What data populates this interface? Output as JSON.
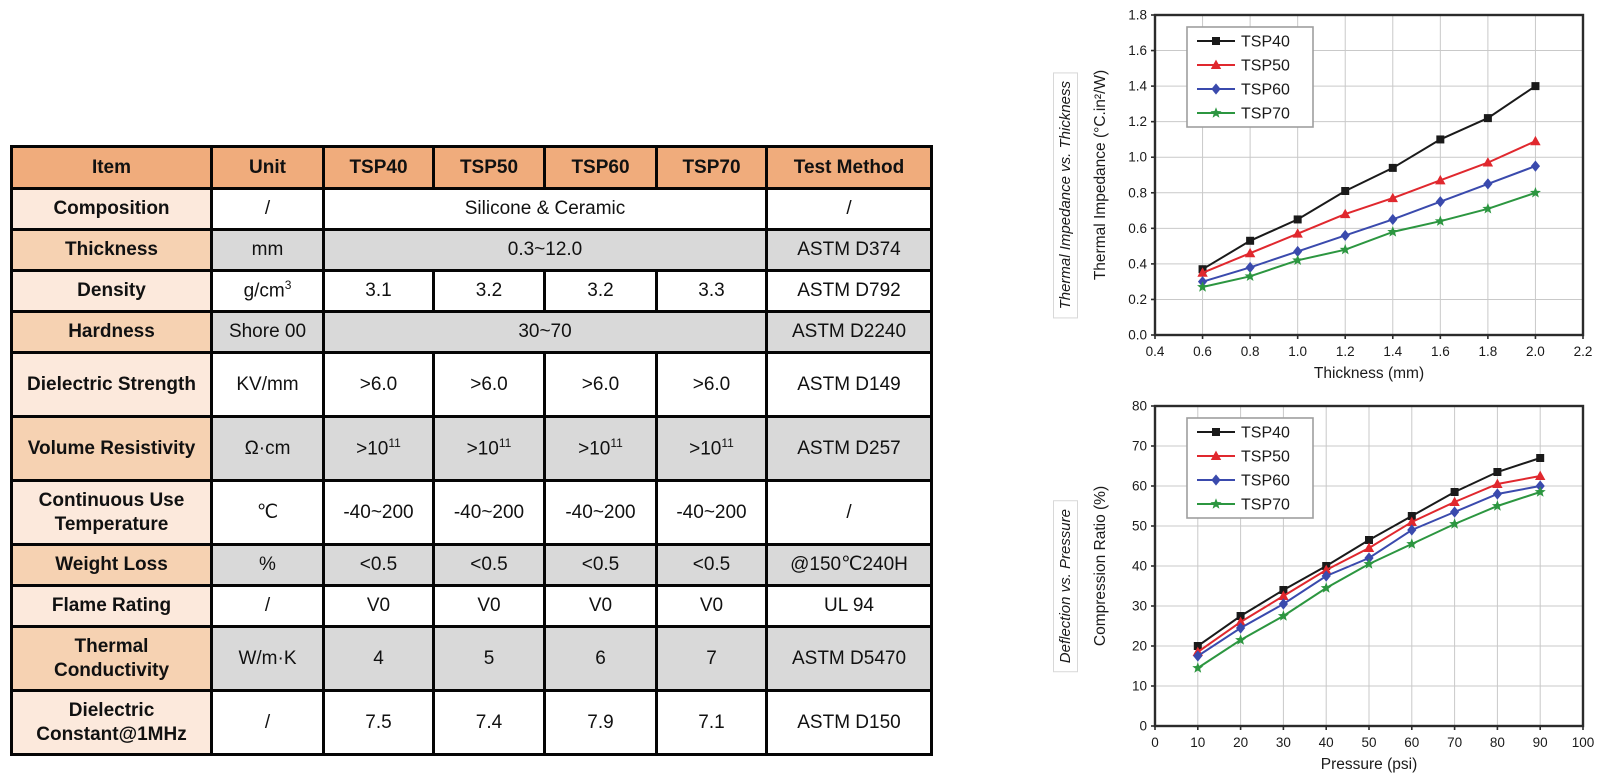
{
  "table": {
    "columns": [
      "Item",
      "Unit",
      "TSP40",
      "TSP50",
      "TSP60",
      "TSP70",
      "Test Method"
    ],
    "rows": [
      {
        "item": "Composition",
        "unit": "/",
        "merged": true,
        "values": [
          "Silicone & Ceramic"
        ],
        "test": "/",
        "shade": "white",
        "height": "short"
      },
      {
        "item": "Thickness",
        "unit": "mm",
        "merged": true,
        "values": [
          "0.3~12.0"
        ],
        "test": "ASTM D374",
        "shade": "gray",
        "height": "short"
      },
      {
        "item": "Density",
        "unit": "g/cm^3",
        "merged": false,
        "values": [
          "3.1",
          "3.2",
          "3.2",
          "3.3"
        ],
        "test": "ASTM D792",
        "shade": "white",
        "height": "short"
      },
      {
        "item": "Hardness",
        "unit": "Shore 00",
        "merged": true,
        "values": [
          "30~70"
        ],
        "test": "ASTM D2240",
        "shade": "gray",
        "height": "short"
      },
      {
        "item": "Dielectric Strength",
        "unit": "KV/mm",
        "merged": false,
        "values": [
          ">6.0",
          ">6.0",
          ">6.0",
          ">6.0"
        ],
        "test": "ASTM D149",
        "shade": "white",
        "height": "tall"
      },
      {
        "item": "Volume Resistivity",
        "unit": "Ω·cm",
        "merged": false,
        "values": [
          ">10^11",
          ">10^11",
          ">10^11",
          ">10^11"
        ],
        "test": "ASTM D257",
        "shade": "gray",
        "height": "tall"
      },
      {
        "item": "Continuous Use Temperature",
        "unit": "℃",
        "merged": false,
        "values": [
          "-40~200",
          "-40~200",
          "-40~200",
          "-40~200"
        ],
        "test": "/",
        "shade": "white",
        "height": "tall"
      },
      {
        "item": "Weight Loss",
        "unit": "%",
        "merged": false,
        "values": [
          "<0.5",
          "<0.5",
          "<0.5",
          "<0.5"
        ],
        "test": "@150℃240H",
        "shade": "gray",
        "height": "short"
      },
      {
        "item": "Flame Rating",
        "unit": "/",
        "merged": false,
        "values": [
          "V0",
          "V0",
          "V0",
          "V0"
        ],
        "test": "UL 94",
        "shade": "white",
        "height": "short"
      },
      {
        "item": "Thermal Conductivity",
        "unit": "W/m·K",
        "merged": false,
        "values": [
          "4",
          "5",
          "6",
          "7"
        ],
        "test": "ASTM D5470",
        "shade": "gray",
        "height": "tall"
      },
      {
        "item": "Dielectric Constant@1MHz",
        "unit": "/",
        "merged": false,
        "values": [
          "7.5",
          "7.4",
          "7.9",
          "7.1"
        ],
        "test": "ASTM D150",
        "shade": "white",
        "height": "tall"
      }
    ]
  },
  "chart_data": [
    {
      "type": "line",
      "caption": "Thermal Impedance vs. Thickness",
      "xlabel": "Thickness (mm)",
      "ylabel": "Thermal Impedance (°C.in²/W)",
      "xlim": [
        0.4,
        2.2
      ],
      "ylim": [
        0.0,
        1.8
      ],
      "xtick_step": 0.2,
      "ytick_step": 0.2,
      "xtick_decimals": 1,
      "ytick_decimals": 1,
      "grid": true,
      "legend_position": "top-left",
      "x": [
        0.6,
        0.8,
        1.0,
        1.2,
        1.4,
        1.6,
        1.8,
        2.0
      ],
      "series": [
        {
          "name": "TSP40",
          "color": "#1a1a1a",
          "marker": "square",
          "values": [
            0.37,
            0.53,
            0.65,
            0.81,
            0.94,
            1.1,
            1.22,
            1.4
          ]
        },
        {
          "name": "TSP50",
          "color": "#e0282e",
          "marker": "triangle",
          "values": [
            0.35,
            0.46,
            0.57,
            0.68,
            0.77,
            0.87,
            0.97,
            1.09
          ]
        },
        {
          "name": "TSP60",
          "color": "#3a4aad",
          "marker": "diamond",
          "values": [
            0.3,
            0.38,
            0.47,
            0.56,
            0.65,
            0.75,
            0.85,
            0.95
          ]
        },
        {
          "name": "TSP70",
          "color": "#2c9640",
          "marker": "star",
          "values": [
            0.27,
            0.33,
            0.42,
            0.48,
            0.58,
            0.64,
            0.71,
            0.8
          ]
        }
      ]
    },
    {
      "type": "line",
      "caption": "Deflection vs. Pressure",
      "xlabel": "Pressure (psi)",
      "ylabel": "Compression Ratio (%)",
      "xlim": [
        0,
        100
      ],
      "ylim": [
        0,
        80
      ],
      "xtick_step": 10,
      "ytick_step": 10,
      "xtick_decimals": 0,
      "ytick_decimals": 0,
      "grid": true,
      "legend_position": "top-left",
      "x": [
        10,
        20,
        30,
        40,
        50,
        60,
        70,
        80,
        90
      ],
      "series": [
        {
          "name": "TSP40",
          "color": "#1a1a1a",
          "marker": "square",
          "values": [
            20.0,
            27.5,
            34.0,
            40.0,
            46.5,
            52.5,
            58.5,
            63.5,
            67.0
          ]
        },
        {
          "name": "TSP50",
          "color": "#e0282e",
          "marker": "triangle",
          "values": [
            18.5,
            26.0,
            32.5,
            39.0,
            44.5,
            51.0,
            56.0,
            60.5,
            62.5
          ]
        },
        {
          "name": "TSP60",
          "color": "#3a4aad",
          "marker": "diamond",
          "values": [
            17.5,
            24.5,
            30.5,
            37.5,
            42.0,
            49.0,
            53.5,
            58.0,
            60.0
          ]
        },
        {
          "name": "TSP70",
          "color": "#2c9640",
          "marker": "star",
          "values": [
            14.5,
            21.5,
            27.5,
            34.5,
            40.5,
            45.5,
            50.5,
            55.0,
            58.5
          ]
        }
      ]
    }
  ],
  "colors": {
    "header_bg": "#F0AC7C",
    "item_light": "#FCE9DC",
    "item_medium": "#F6D2B2",
    "cell_gray": "#D9D9D9",
    "grid_line": "#c9c9c9",
    "frame": "#2b2b2b",
    "legend_border": "#9e9e9e"
  }
}
